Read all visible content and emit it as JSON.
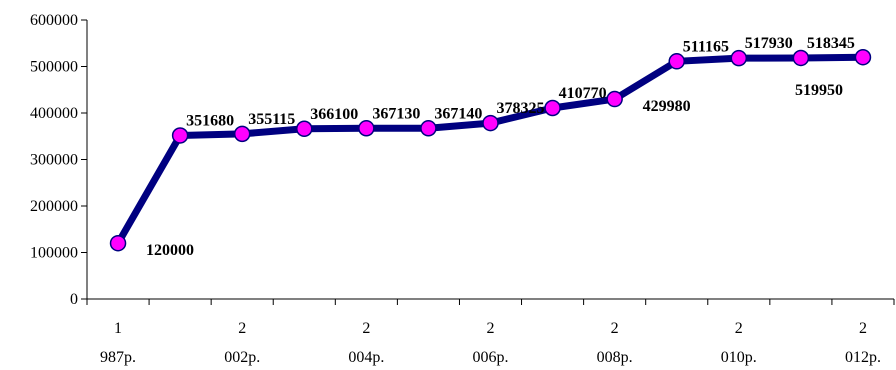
{
  "chart_data": {
    "type": "line",
    "title": "",
    "xlabel": "",
    "ylabel": "",
    "ylim": [
      0,
      600000
    ],
    "yticks": [
      0,
      100000,
      200000,
      300000,
      400000,
      500000,
      600000
    ],
    "ytick_labels": [
      "0",
      "100000",
      "200000",
      "300000",
      "400000",
      "500000",
      "600000"
    ],
    "grid": false,
    "legend": "none",
    "x_tick_labels": [
      {
        "line1": "1",
        "line2": "987р."
      },
      {
        "line1": "2",
        "line2": "002р."
      },
      {
        "line1": "2",
        "line2": "004р."
      },
      {
        "line1": "2",
        "line2": "006р."
      },
      {
        "line1": "2",
        "line2": "008р."
      },
      {
        "line1": "2",
        "line2": "010р."
      },
      {
        "line1": "2",
        "line2": "012р."
      }
    ],
    "x_tick_label_every": 2,
    "series": [
      {
        "values": [
          120000,
          351680,
          355115,
          366100,
          367130,
          367140,
          378325,
          410770,
          429980,
          511165,
          517930,
          518345,
          519950
        ],
        "data_labels": [
          "120000",
          "351680",
          "355115",
          "366100",
          "367130",
          "367140",
          "378325",
          "410770",
          "429980",
          "511165",
          "517930",
          "518345",
          "519950"
        ],
        "line_color": "#000080",
        "marker_color": "#ff00ff"
      }
    ]
  }
}
